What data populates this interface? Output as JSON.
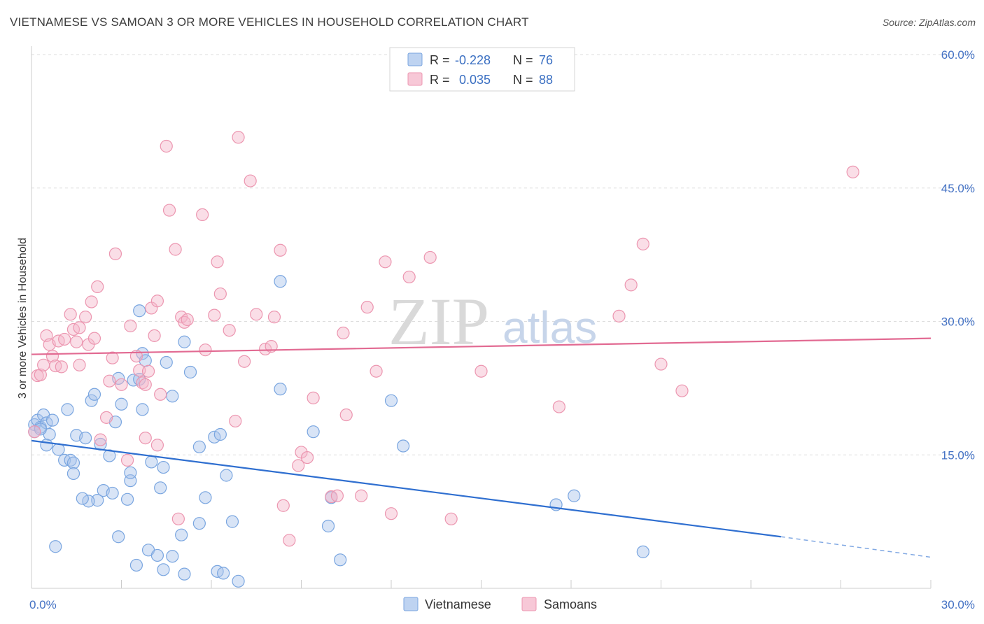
{
  "header": {
    "title": "VIETNAMESE VS SAMOAN 3 OR MORE VEHICLES IN HOUSEHOLD CORRELATION CHART",
    "source": "Source: ZipAtlas.com"
  },
  "watermark": {
    "zip": "ZIP",
    "atlas": "atlas"
  },
  "legend_top": [
    {
      "r_label": "R =",
      "r_value": "-0.228",
      "n_label": "N =",
      "n_value": "76",
      "color": "#a8c4ec"
    },
    {
      "r_label": "R =",
      "r_value": "0.035",
      "n_label": "N =",
      "n_value": "88",
      "color": "#f4b6c9"
    }
  ],
  "legend_bottom": [
    {
      "label": "Vietnamese",
      "color": "#a8c4ec"
    },
    {
      "label": "Samoans",
      "color": "#f4b6c9"
    }
  ],
  "chart_data": {
    "type": "scatter",
    "title": "VIETNAMESE VS SAMOAN 3 OR MORE VEHICLES IN HOUSEHOLD CORRELATION CHART",
    "xlabel": "",
    "ylabel": "3 or more Vehicles in Household",
    "xlim": [
      0,
      30
    ],
    "ylim": [
      0,
      60
    ],
    "x_ticks": [
      {
        "value": 0,
        "label": "0.0%"
      },
      {
        "value": 30,
        "label": "30.0%"
      }
    ],
    "y_ticks": [
      {
        "value": 15,
        "label": "15.0%"
      },
      {
        "value": 30,
        "label": "30.0%"
      },
      {
        "value": 45,
        "label": "45.0%"
      },
      {
        "value": 60,
        "label": "60.0%"
      }
    ],
    "grid": true,
    "legend_placement": "top-center",
    "series": [
      {
        "name": "Vietnamese",
        "color": "#a8c4ec",
        "stroke": "#7aa6e0",
        "trend": {
          "x0": 0,
          "y0": 16.6,
          "x1": 25,
          "y1": 5.8,
          "dash_to_x": 30,
          "dash_to_y": 3.5,
          "color": "#2f6fd0"
        },
        "points": [
          [
            0.1,
            18.4
          ],
          [
            0.2,
            18.9
          ],
          [
            0.3,
            18.1
          ],
          [
            0.4,
            19.5
          ],
          [
            0.5,
            18.6
          ],
          [
            0.6,
            17.3
          ],
          [
            0.7,
            18.9
          ],
          [
            0.5,
            16.1
          ],
          [
            0.9,
            15.6
          ],
          [
            1.1,
            14.4
          ],
          [
            1.3,
            14.4
          ],
          [
            1.4,
            14.1
          ],
          [
            1.2,
            20.1
          ],
          [
            1.5,
            17.2
          ],
          [
            1.8,
            16.9
          ],
          [
            2.0,
            21.1
          ],
          [
            2.1,
            21.8
          ],
          [
            2.3,
            16.2
          ],
          [
            2.2,
            9.9
          ],
          [
            1.9,
            9.8
          ],
          [
            1.7,
            10.1
          ],
          [
            2.4,
            11.0
          ],
          [
            2.6,
            14.9
          ],
          [
            2.7,
            10.7
          ],
          [
            2.8,
            18.7
          ],
          [
            2.9,
            23.6
          ],
          [
            3.0,
            20.7
          ],
          [
            2.9,
            5.8
          ],
          [
            3.2,
            10.0
          ],
          [
            3.3,
            12.1
          ],
          [
            3.3,
            13.0
          ],
          [
            3.4,
            23.4
          ],
          [
            3.7,
            26.4
          ],
          [
            3.6,
            23.5
          ],
          [
            3.8,
            25.6
          ],
          [
            3.7,
            20.1
          ],
          [
            3.6,
            31.2
          ],
          [
            3.5,
            2.6
          ],
          [
            3.9,
            4.3
          ],
          [
            4.0,
            14.2
          ],
          [
            4.2,
            3.7
          ],
          [
            4.3,
            11.3
          ],
          [
            4.4,
            13.6
          ],
          [
            4.5,
            25.4
          ],
          [
            4.7,
            21.6
          ],
          [
            4.4,
            2.1
          ],
          [
            4.7,
            3.6
          ],
          [
            5.0,
            6.0
          ],
          [
            5.1,
            1.6
          ],
          [
            5.1,
            27.7
          ],
          [
            5.3,
            24.3
          ],
          [
            5.6,
            7.3
          ],
          [
            5.6,
            15.9
          ],
          [
            5.8,
            10.2
          ],
          [
            6.1,
            17.0
          ],
          [
            6.2,
            1.9
          ],
          [
            6.4,
            1.7
          ],
          [
            6.3,
            17.3
          ],
          [
            6.5,
            12.7
          ],
          [
            6.7,
            7.5
          ],
          [
            6.9,
            0.8
          ],
          [
            8.3,
            22.4
          ],
          [
            8.3,
            34.5
          ],
          [
            9.4,
            17.6
          ],
          [
            9.9,
            7.0
          ],
          [
            10.0,
            10.2
          ],
          [
            10.3,
            3.2
          ],
          [
            12.0,
            21.1
          ],
          [
            12.4,
            16.0
          ],
          [
            17.5,
            9.4
          ],
          [
            18.1,
            10.4
          ],
          [
            20.4,
            4.1
          ],
          [
            0.8,
            4.7
          ],
          [
            1.4,
            12.9
          ],
          [
            0.1,
            17.6
          ],
          [
            0.3,
            17.9
          ]
        ]
      },
      {
        "name": "Samoans",
        "color": "#f4b6c9",
        "stroke": "#ec96b0",
        "trend": {
          "x0": 0,
          "y0": 26.3,
          "x1": 30,
          "y1": 28.1,
          "color": "#e26a92"
        },
        "points": [
          [
            0.1,
            17.6
          ],
          [
            0.2,
            23.9
          ],
          [
            0.3,
            24.0
          ],
          [
            0.4,
            25.1
          ],
          [
            0.5,
            28.4
          ],
          [
            0.6,
            27.4
          ],
          [
            0.7,
            26.1
          ],
          [
            0.8,
            25.0
          ],
          [
            0.9,
            27.8
          ],
          [
            1.0,
            24.9
          ],
          [
            1.1,
            28.0
          ],
          [
            1.3,
            30.8
          ],
          [
            1.4,
            29.1
          ],
          [
            1.5,
            27.7
          ],
          [
            1.6,
            29.3
          ],
          [
            1.8,
            30.5
          ],
          [
            1.9,
            27.4
          ],
          [
            2.0,
            32.2
          ],
          [
            2.1,
            28.1
          ],
          [
            2.2,
            33.9
          ],
          [
            2.3,
            16.7
          ],
          [
            2.5,
            19.2
          ],
          [
            2.6,
            23.3
          ],
          [
            2.7,
            25.9
          ],
          [
            2.8,
            37.6
          ],
          [
            3.0,
            22.9
          ],
          [
            3.2,
            14.4
          ],
          [
            3.3,
            29.5
          ],
          [
            3.5,
            26.1
          ],
          [
            3.6,
            24.5
          ],
          [
            3.7,
            23.1
          ],
          [
            3.8,
            16.9
          ],
          [
            3.9,
            24.4
          ],
          [
            4.0,
            31.5
          ],
          [
            4.1,
            28.4
          ],
          [
            4.2,
            32.3
          ],
          [
            4.3,
            21.8
          ],
          [
            4.5,
            49.7
          ],
          [
            4.6,
            42.5
          ],
          [
            4.8,
            38.1
          ],
          [
            4.9,
            7.8
          ],
          [
            5.0,
            30.5
          ],
          [
            5.1,
            29.9
          ],
          [
            5.2,
            30.2
          ],
          [
            5.7,
            42.0
          ],
          [
            5.8,
            26.8
          ],
          [
            6.1,
            30.7
          ],
          [
            6.2,
            36.7
          ],
          [
            6.3,
            33.1
          ],
          [
            6.6,
            29.0
          ],
          [
            6.8,
            18.8
          ],
          [
            6.9,
            50.7
          ],
          [
            7.1,
            25.5
          ],
          [
            7.3,
            45.8
          ],
          [
            7.5,
            30.8
          ],
          [
            7.8,
            26.9
          ],
          [
            8.0,
            27.2
          ],
          [
            8.1,
            30.5
          ],
          [
            8.3,
            38.0
          ],
          [
            8.4,
            9.3
          ],
          [
            8.6,
            5.4
          ],
          [
            8.9,
            13.8
          ],
          [
            9.0,
            15.3
          ],
          [
            9.2,
            14.7
          ],
          [
            9.4,
            21.4
          ],
          [
            10.0,
            10.3
          ],
          [
            10.2,
            10.4
          ],
          [
            10.4,
            28.7
          ],
          [
            10.5,
            19.5
          ],
          [
            11.0,
            10.4
          ],
          [
            11.2,
            31.6
          ],
          [
            11.5,
            24.4
          ],
          [
            11.8,
            36.7
          ],
          [
            12.0,
            8.4
          ],
          [
            12.6,
            35.0
          ],
          [
            13.3,
            37.2
          ],
          [
            14.0,
            7.8
          ],
          [
            15.0,
            24.4
          ],
          [
            17.6,
            20.4
          ],
          [
            19.6,
            30.6
          ],
          [
            20.0,
            34.1
          ],
          [
            20.4,
            38.7
          ],
          [
            21.0,
            25.2
          ],
          [
            21.7,
            22.2
          ],
          [
            27.4,
            46.8
          ],
          [
            4.2,
            16.1
          ],
          [
            1.6,
            25.1
          ],
          [
            3.8,
            22.9
          ]
        ]
      }
    ]
  }
}
